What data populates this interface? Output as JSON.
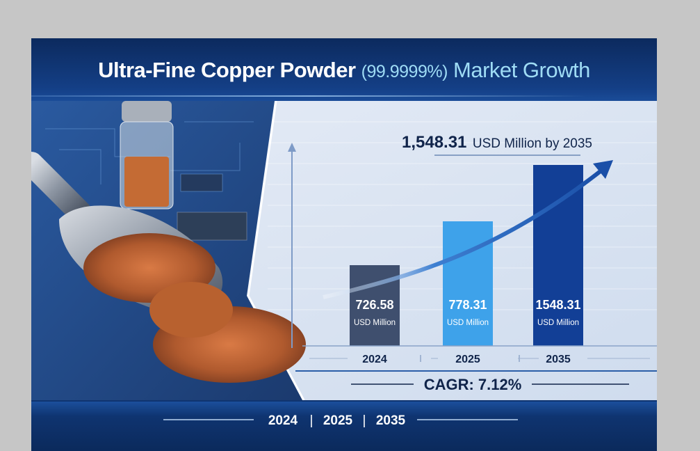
{
  "title": {
    "main": "Ultra-Fine Copper Powder",
    "purity": "(99.9999%)",
    "suffix": "Market Growth"
  },
  "headline": {
    "value": "1,548.31",
    "text": "USD Million by 2035"
  },
  "cagr": "CAGR: 7.12%",
  "footer_years": [
    "2024",
    "2025",
    "2035"
  ],
  "footer_separator": "|",
  "colors": {
    "header": "#0f3470",
    "bar_2024": "#3f4f6e",
    "bar_2025": "#3ea2ea",
    "bar_2035": "#123f96",
    "accent_text": "#9fdcf5"
  },
  "chart_data": {
    "type": "bar",
    "categories": [
      "2024",
      "2025",
      "2035"
    ],
    "values": [
      726.58,
      778.31,
      1548.31
    ],
    "unit": "USD Million",
    "value_labels": [
      "726.58",
      "778.31",
      "1548.31"
    ],
    "trend_arrow": true,
    "grid": false
  }
}
